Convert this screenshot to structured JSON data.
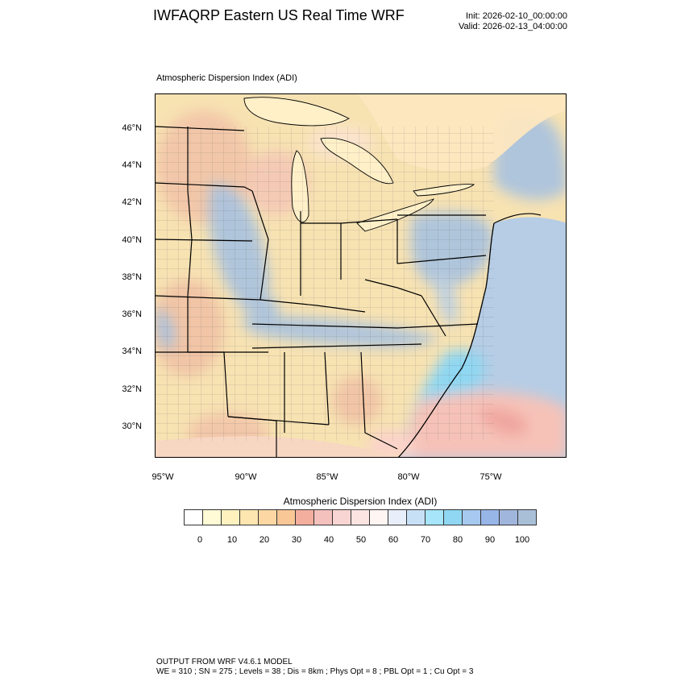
{
  "header": {
    "title": "IWFAQRP Eastern US Real Time WRF",
    "init": "Init: 2026-02-10_00:00:00",
    "valid": "Valid: 2026-02-13_04:00:00"
  },
  "map": {
    "subtitle": "Atmospheric Dispersion Index   (ADI)",
    "lat_labels": [
      "46°N",
      "44°N",
      "42°N",
      "40°N",
      "38°N",
      "36°N",
      "34°N",
      "32°N",
      "30°N"
    ],
    "lon_labels": [
      "95°W",
      "90°W",
      "85°W",
      "80°W",
      "75°W"
    ],
    "colors": {
      "land_low": "#f7e2b2",
      "land_mid": "#f2c7a8",
      "land_high_blue": "#a8c2e0",
      "water_low": "#fff0c8",
      "ocean": "#b6cde5",
      "coast_warm": "#f4b7b0",
      "coast_cyan": "#8fd7f2"
    }
  },
  "colorbar": {
    "title": "Atmospheric Dispersion Index  (ADI)",
    "tick_labels": [
      "0",
      "10",
      "20",
      "30",
      "40",
      "50",
      "60",
      "70",
      "80",
      "90",
      "100"
    ],
    "colors": [
      "#ffffff",
      "#fffbd6",
      "#fff2bf",
      "#fee6b0",
      "#fcd7a3",
      "#f9c796",
      "#f3ae9e",
      "#f4c1bd",
      "#f8d5d2",
      "#fbe4e2",
      "#fff5f3",
      "#e9eefb",
      "#c8e0f6",
      "#a6e5fa",
      "#8fd7f2",
      "#a7c8ef",
      "#98b5e8",
      "#a1b6dd",
      "#a9bfd8"
    ]
  },
  "footer": {
    "line1": "OUTPUT FROM WRF V4.6.1 MODEL",
    "line2": "WE = 310 ; SN = 275 ; Levels = 38 ; Dis = 8km ; Phys Opt = 8 ; PBL Opt = 1 ; Cu Opt = 3"
  }
}
